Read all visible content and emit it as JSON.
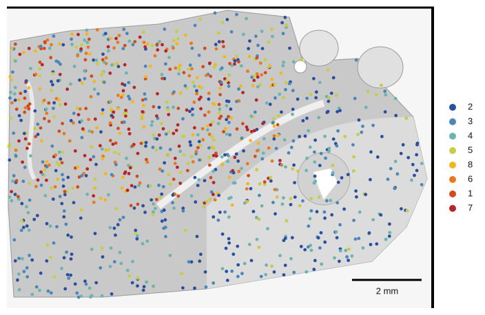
{
  "legend": {
    "items": [
      {
        "label": "2",
        "color": "#2b4f9e"
      },
      {
        "label": "3",
        "color": "#4a86b8"
      },
      {
        "label": "4",
        "color": "#6cb4ae"
      },
      {
        "label": "5",
        "color": "#c7cc46"
      },
      {
        "label": "8",
        "color": "#efb722"
      },
      {
        "label": "6",
        "color": "#e7791f"
      },
      {
        "label": "1",
        "color": "#d04b1d"
      },
      {
        "label": "7",
        "color": "#b52529"
      }
    ]
  },
  "scale_bar": {
    "label": "2 mm"
  }
}
